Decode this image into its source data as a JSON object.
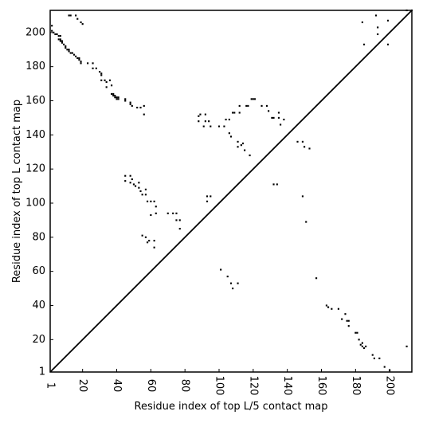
{
  "chart_data": {
    "type": "scatter",
    "title": "",
    "xlabel": "Residue index of top L/5 contact map",
    "ylabel": "Residue index of top L contact map",
    "xlim": [
      1,
      213
    ],
    "ylim": [
      1,
      213
    ],
    "x_ticks": [
      {
        "value": 1,
        "label": "1"
      },
      {
        "value": 20,
        "label": "20"
      },
      {
        "value": 40,
        "label": "40"
      },
      {
        "value": 60,
        "label": "60"
      },
      {
        "value": 80,
        "label": "80"
      },
      {
        "value": 100,
        "label": "100"
      },
      {
        "value": 120,
        "label": "120"
      },
      {
        "value": 140,
        "label": "140"
      },
      {
        "value": 160,
        "label": "160"
      },
      {
        "value": 180,
        "label": "180"
      },
      {
        "value": 200,
        "label": "200"
      }
    ],
    "y_ticks": [
      {
        "value": 1,
        "label": "1"
      },
      {
        "value": 20,
        "label": "20"
      },
      {
        "value": 40,
        "label": "40"
      },
      {
        "value": 60,
        "label": "60"
      },
      {
        "value": 80,
        "label": "80"
      },
      {
        "value": 100,
        "label": "100"
      },
      {
        "value": 120,
        "label": "120"
      },
      {
        "value": 140,
        "label": "140"
      },
      {
        "value": 160,
        "label": "160"
      },
      {
        "value": 180,
        "label": "180"
      },
      {
        "value": 200,
        "label": "200"
      }
    ],
    "diagonal": {
      "from": [
        1,
        1
      ],
      "to": [
        213,
        213
      ]
    },
    "grid": false,
    "marker_color": "#000000",
    "series": [
      {
        "points": [
          [
            2,
            204
          ],
          [
            2,
            201
          ],
          [
            3,
            200
          ],
          [
            4,
            199
          ],
          [
            5,
            199
          ],
          [
            6,
            198
          ],
          [
            7,
            198
          ],
          [
            7,
            196
          ],
          [
            6,
            196
          ],
          [
            8,
            195
          ],
          [
            7,
            195
          ],
          [
            8,
            194
          ],
          [
            9,
            193
          ],
          [
            10,
            192
          ],
          [
            10,
            191
          ],
          [
            11,
            190
          ],
          [
            12,
            190
          ],
          [
            12,
            189
          ],
          [
            13,
            188
          ],
          [
            14,
            188
          ],
          [
            15,
            187
          ],
          [
            16,
            186
          ],
          [
            17,
            185
          ],
          [
            18,
            185
          ],
          [
            18,
            184
          ],
          [
            19,
            183
          ],
          [
            19,
            182
          ],
          [
            12,
            210
          ],
          [
            13,
            210
          ],
          [
            16,
            210
          ],
          [
            17,
            208
          ],
          [
            19,
            206
          ],
          [
            20,
            205
          ],
          [
            23,
            182
          ],
          [
            26,
            182
          ],
          [
            26,
            179
          ],
          [
            28,
            179
          ],
          [
            30,
            177
          ],
          [
            31,
            176
          ],
          [
            31,
            175
          ],
          [
            31,
            172
          ],
          [
            33,
            172
          ],
          [
            34,
            171
          ],
          [
            34,
            168
          ],
          [
            36,
            172
          ],
          [
            37,
            169
          ],
          [
            37,
            164
          ],
          [
            38,
            164
          ],
          [
            38,
            163
          ],
          [
            39,
            163
          ],
          [
            39,
            162
          ],
          [
            40,
            162
          ],
          [
            40,
            161
          ],
          [
            41,
            162
          ],
          [
            41,
            161
          ],
          [
            45,
            161
          ],
          [
            45,
            160
          ],
          [
            48,
            158
          ],
          [
            48,
            159
          ],
          [
            49,
            157
          ],
          [
            52,
            156
          ],
          [
            54,
            156
          ],
          [
            56,
            157
          ],
          [
            56,
            152
          ],
          [
            45,
            116
          ],
          [
            45,
            113
          ],
          [
            48,
            116
          ],
          [
            48,
            112
          ],
          [
            49,
            114
          ],
          [
            50,
            111
          ],
          [
            51,
            110
          ],
          [
            53,
            112
          ],
          [
            53,
            109
          ],
          [
            54,
            107
          ],
          [
            55,
            105
          ],
          [
            57,
            108
          ],
          [
            57,
            105
          ],
          [
            58,
            101
          ],
          [
            60,
            101
          ],
          [
            60,
            93
          ],
          [
            62,
            101
          ],
          [
            63,
            98
          ],
          [
            63,
            94
          ],
          [
            55,
            81
          ],
          [
            57,
            80
          ],
          [
            58,
            77
          ],
          [
            59,
            78
          ],
          [
            62,
            78
          ],
          [
            62,
            74
          ],
          [
            70,
            94
          ],
          [
            73,
            94
          ],
          [
            75,
            94
          ],
          [
            75,
            90
          ],
          [
            77,
            90
          ],
          [
            77,
            85
          ],
          [
            89,
            152
          ],
          [
            88,
            151
          ],
          [
            88,
            148
          ],
          [
            91,
            145
          ],
          [
            92,
            148
          ],
          [
            92,
            152
          ],
          [
            94,
            148
          ],
          [
            95,
            145
          ],
          [
            93,
            104
          ],
          [
            93,
            101
          ],
          [
            95,
            104
          ],
          [
            100,
            145
          ],
          [
            103,
            145
          ],
          [
            104,
            149
          ],
          [
            106,
            149
          ],
          [
            106,
            141
          ],
          [
            107,
            139
          ],
          [
            108,
            153
          ],
          [
            109,
            153
          ],
          [
            111,
            136
          ],
          [
            111,
            133
          ],
          [
            112,
            157
          ],
          [
            112,
            153
          ],
          [
            113,
            134
          ],
          [
            114,
            135
          ],
          [
            115,
            131
          ],
          [
            116,
            157
          ],
          [
            117,
            157
          ],
          [
            118,
            128
          ],
          [
            119,
            161
          ],
          [
            120,
            161
          ],
          [
            121,
            161
          ],
          [
            125,
            157
          ],
          [
            128,
            157
          ],
          [
            129,
            154
          ],
          [
            131,
            150
          ],
          [
            132,
            150
          ],
          [
            132,
            111
          ],
          [
            134,
            111
          ],
          [
            135,
            153
          ],
          [
            135,
            150
          ],
          [
            136,
            146
          ],
          [
            138,
            149
          ],
          [
            101,
            61
          ],
          [
            105,
            57
          ],
          [
            107,
            53
          ],
          [
            108,
            50
          ],
          [
            111,
            53
          ],
          [
            146,
            136
          ],
          [
            149,
            136
          ],
          [
            150,
            133
          ],
          [
            153,
            132
          ],
          [
            149,
            104
          ],
          [
            151,
            89
          ],
          [
            157,
            56
          ],
          [
            163,
            40
          ],
          [
            164,
            39
          ],
          [
            166,
            38
          ],
          [
            170,
            38
          ],
          [
            172,
            32
          ],
          [
            174,
            35
          ],
          [
            175,
            31
          ],
          [
            176,
            31
          ],
          [
            176,
            28
          ],
          [
            180,
            24
          ],
          [
            181,
            24
          ],
          [
            182,
            20
          ],
          [
            183,
            17
          ],
          [
            184,
            16
          ],
          [
            184,
            18
          ],
          [
            185,
            15
          ],
          [
            186,
            16
          ],
          [
            190,
            11
          ],
          [
            191,
            9
          ],
          [
            194,
            9
          ],
          [
            197,
            4
          ],
          [
            200,
            2
          ],
          [
            210,
            16
          ],
          [
            184,
            206
          ],
          [
            185,
            193
          ],
          [
            192,
            210
          ],
          [
            193,
            203
          ],
          [
            193,
            199
          ],
          [
            199,
            207
          ],
          [
            199,
            193
          ],
          [
            210,
            213
          ],
          [
            213,
            213
          ]
        ]
      }
    ]
  }
}
